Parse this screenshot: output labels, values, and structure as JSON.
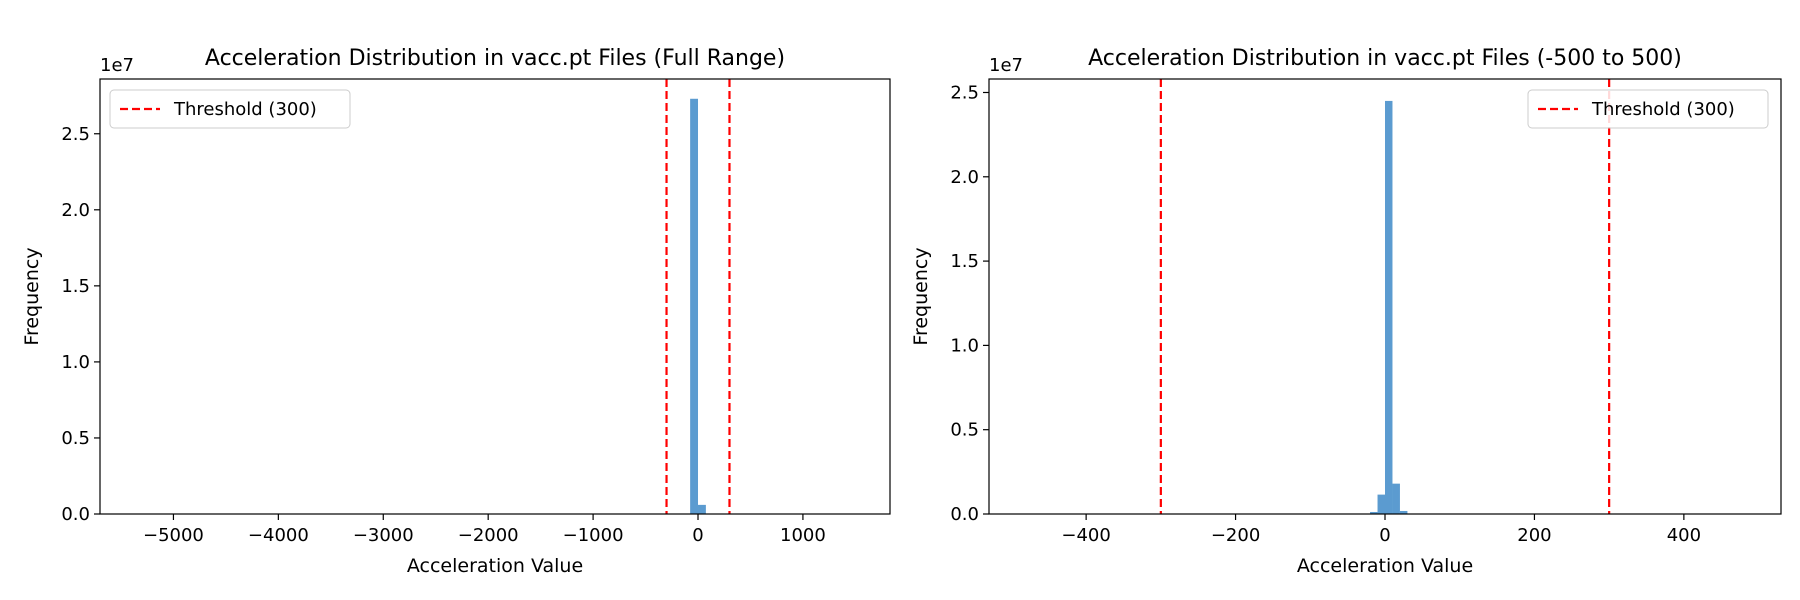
{
  "chart_data": [
    {
      "type": "histogram",
      "title": "Acceleration Distribution in vacc.pt Files (Full Range)",
      "xlabel": "Acceleration Value",
      "ylabel": "Frequency",
      "y_offset_label": "1e7",
      "xlim": [
        -5700,
        1830
      ],
      "ylim": [
        0,
        28600000.0
      ],
      "x_ticks": [
        -5000,
        -4000,
        -3000,
        -2000,
        -1000,
        0,
        1000
      ],
      "x_tick_labels": [
        "−5000",
        "−4000",
        "−3000",
        "−2000",
        "−1000",
        "0",
        "1000"
      ],
      "y_ticks": [
        0,
        5000000,
        10000000,
        15000000,
        20000000,
        25000000
      ],
      "y_tick_labels": [
        "0.0",
        "0.5",
        "1.0",
        "1.5",
        "2.0",
        "2.5"
      ],
      "bar_color": "#5b9bd0",
      "bins": [
        {
          "x0": -75,
          "x1": 0,
          "value": 27300000
        },
        {
          "x0": 0,
          "x1": 75,
          "value": 600000
        }
      ],
      "threshold_lines": [
        -300,
        300
      ],
      "threshold_color": "#ff0000",
      "legend": {
        "label": "Threshold (300)",
        "position": "upper-left"
      },
      "grid": false
    },
    {
      "type": "histogram",
      "title": "Acceleration Distribution in vacc.pt Files (-500 to 500)",
      "xlabel": "Acceleration Value",
      "ylabel": "Frequency",
      "y_offset_label": "1e7",
      "xlim": [
        -530,
        530
      ],
      "ylim": [
        0,
        25800000.0
      ],
      "x_ticks": [
        -400,
        -200,
        0,
        200,
        400
      ],
      "x_tick_labels": [
        "−400",
        "−200",
        "0",
        "200",
        "400"
      ],
      "y_ticks": [
        0,
        5000000,
        10000000,
        15000000,
        20000000,
        25000000
      ],
      "y_tick_labels": [
        "0.0",
        "0.5",
        "1.0",
        "1.5",
        "2.0",
        "2.5"
      ],
      "bar_color": "#5b9bd0",
      "bins": [
        {
          "x0": -30,
          "x1": -20,
          "value": 20000
        },
        {
          "x0": -20,
          "x1": -10,
          "value": 120000
        },
        {
          "x0": -10,
          "x1": 0,
          "value": 1150000
        },
        {
          "x0": 0,
          "x1": 10,
          "value": 24500000
        },
        {
          "x0": 10,
          "x1": 20,
          "value": 1800000
        },
        {
          "x0": 20,
          "x1": 30,
          "value": 180000
        },
        {
          "x0": 30,
          "x1": 40,
          "value": 20000
        }
      ],
      "threshold_lines": [
        -300,
        300
      ],
      "threshold_color": "#ff0000",
      "legend": {
        "label": "Threshold (300)",
        "position": "upper-right"
      },
      "grid": false
    }
  ]
}
